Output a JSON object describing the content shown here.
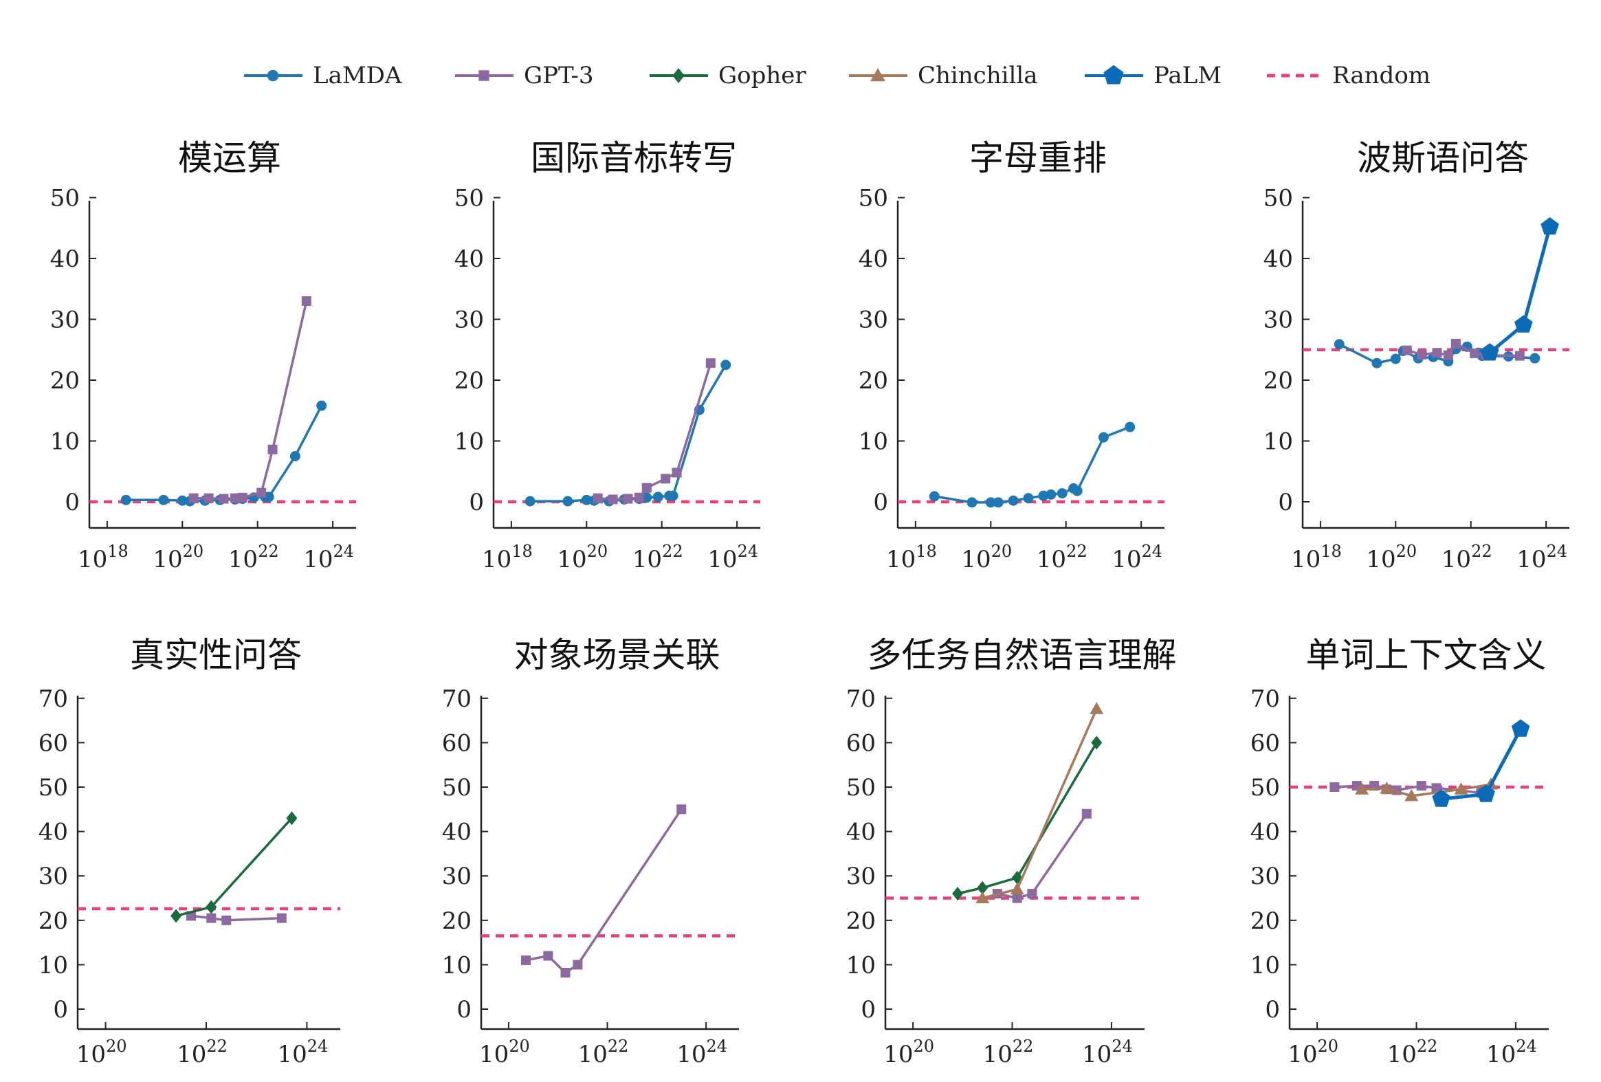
{
  "legend": {
    "items": [
      {
        "name": "LaMDA",
        "color": "#1f77b4",
        "marker": "circle",
        "dashed": false
      },
      {
        "name": "GPT-3",
        "color": "#8c6aa0",
        "marker": "square",
        "dashed": false
      },
      {
        "name": "Gopher",
        "color": "#1a6b3c",
        "marker": "diamond",
        "dashed": false
      },
      {
        "name": "Chinchilla",
        "color": "#a57a5a",
        "marker": "triangle",
        "dashed": false
      },
      {
        "name": "PaLM",
        "color": "#0a6cb8",
        "marker": "pentagon",
        "dashed": false
      },
      {
        "name": "Random",
        "color": "#e8417a",
        "marker": "none",
        "dashed": true
      }
    ]
  },
  "chart_data": [
    {
      "type": "line",
      "title": "模运算",
      "x_scale": "log",
      "xlim_exp": [
        17.6,
        24.4
      ],
      "ylim": [
        -4,
        50
      ],
      "xticks_exp": [
        18,
        20,
        22,
        24
      ],
      "yticks": [
        0,
        10,
        20,
        30,
        40,
        50
      ],
      "random": 0,
      "series": [
        {
          "name": "LaMDA",
          "exp": [
            18.5,
            19.5,
            20.0,
            20.2,
            20.6,
            21.0,
            21.4,
            21.6,
            21.9,
            22.2,
            22.3,
            23.0,
            23.7
          ],
          "values": [
            0.3,
            0.3,
            0.2,
            0.1,
            0.2,
            0.3,
            0.4,
            0.5,
            0.7,
            0.8,
            0.8,
            7.5,
            15.8
          ]
        },
        {
          "name": "GPT-3",
          "exp": [
            20.3,
            20.7,
            21.1,
            21.4,
            21.6,
            22.1,
            22.4,
            23.3
          ],
          "values": [
            0.6,
            0.6,
            0.5,
            0.6,
            0.7,
            1.5,
            8.6,
            33.0
          ]
        }
      ]
    },
    {
      "type": "line",
      "title": "国际音标转写",
      "x_scale": "log",
      "xlim_exp": [
        17.6,
        24.4
      ],
      "ylim": [
        -4,
        50
      ],
      "xticks_exp": [
        18,
        20,
        22,
        24
      ],
      "yticks": [
        0,
        10,
        20,
        30,
        40,
        50
      ],
      "random": 0,
      "series": [
        {
          "name": "LaMDA",
          "exp": [
            18.5,
            19.5,
            20.0,
            20.2,
            20.6,
            21.0,
            21.4,
            21.6,
            21.9,
            22.2,
            22.3,
            23.0,
            23.7
          ],
          "values": [
            0.1,
            0.1,
            0.3,
            0.2,
            0.1,
            0.4,
            0.5,
            0.7,
            0.8,
            1.0,
            1.0,
            15.1,
            22.5
          ]
        },
        {
          "name": "GPT-3",
          "exp": [
            20.3,
            20.7,
            21.1,
            21.4,
            21.6,
            22.1,
            22.4,
            23.3
          ],
          "values": [
            0.6,
            0.4,
            0.5,
            0.7,
            2.3,
            3.8,
            4.8,
            22.8
          ]
        }
      ]
    },
    {
      "type": "line",
      "title": "字母重排",
      "x_scale": "log",
      "xlim_exp": [
        17.6,
        24.4
      ],
      "ylim": [
        -4,
        50
      ],
      "xticks_exp": [
        18,
        20,
        22,
        24
      ],
      "yticks": [
        0,
        10,
        20,
        30,
        40,
        50
      ],
      "random": 0,
      "series": [
        {
          "name": "LaMDA",
          "exp": [
            18.5,
            19.5,
            20.0,
            20.2,
            20.6,
            21.0,
            21.4,
            21.6,
            21.9,
            22.2,
            22.3,
            23.0,
            23.7
          ],
          "values": [
            0.9,
            -0.1,
            -0.1,
            -0.1,
            0.2,
            0.6,
            1.0,
            1.2,
            1.4,
            2.2,
            1.8,
            10.6,
            12.3
          ]
        }
      ]
    },
    {
      "type": "line",
      "title": "波斯语问答",
      "x_scale": "log",
      "xlim_exp": [
        17.6,
        24.4
      ],
      "ylim": [
        -4,
        50
      ],
      "xticks_exp": [
        18,
        20,
        22,
        24
      ],
      "yticks": [
        0,
        10,
        20,
        30,
        40,
        50
      ],
      "random": 25,
      "series": [
        {
          "name": "LaMDA",
          "exp": [
            18.5,
            19.5,
            20.0,
            20.2,
            20.6,
            21.0,
            21.4,
            21.6,
            21.9,
            22.2,
            22.3,
            23.0,
            23.7
          ],
          "values": [
            25.9,
            22.8,
            23.5,
            24.8,
            23.6,
            23.8,
            23.1,
            25.1,
            25.5,
            24.5,
            24.0,
            23.9,
            23.6
          ]
        },
        {
          "name": "GPT-3",
          "exp": [
            20.3,
            20.7,
            21.1,
            21.4,
            21.6,
            22.1,
            22.4,
            23.3
          ],
          "values": [
            24.9,
            24.2,
            24.5,
            24.1,
            26.0,
            24.4,
            24.1,
            24.0
          ]
        },
        {
          "name": "PaLM",
          "exp": [
            22.5,
            23.4,
            24.1
          ],
          "values": [
            24.5,
            29.1,
            45.2
          ]
        }
      ]
    },
    {
      "type": "line",
      "title": "真实性问答",
      "x_scale": "log",
      "xlim_exp": [
        19.5,
        24.5
      ],
      "ylim": [
        -4,
        70
      ],
      "xticks_exp": [
        20,
        22,
        24
      ],
      "yticks": [
        0,
        10,
        20,
        30,
        40,
        50,
        60,
        70
      ],
      "random": 22.6,
      "series": [
        {
          "name": "GPT-3",
          "exp": [
            21.7,
            22.1,
            22.4,
            23.5
          ],
          "values": [
            21.0,
            20.5,
            20.0,
            20.5
          ]
        },
        {
          "name": "Gopher",
          "exp": [
            21.4,
            22.1,
            23.7
          ],
          "values": [
            21.0,
            23.0,
            43.0
          ]
        }
      ]
    },
    {
      "type": "line",
      "title": "对象场景关联",
      "x_scale": "log",
      "xlim_exp": [
        19.5,
        24.5
      ],
      "ylim": [
        -4,
        70
      ],
      "xticks_exp": [
        20,
        22,
        24
      ],
      "yticks": [
        0,
        10,
        20,
        30,
        40,
        50,
        60,
        70
      ],
      "random": 16.5,
      "series": [
        {
          "name": "GPT-3",
          "exp": [
            20.35,
            20.8,
            21.15,
            21.4,
            23.5
          ],
          "values": [
            11.0,
            12.0,
            8.2,
            10.0,
            45.0
          ]
        }
      ]
    },
    {
      "type": "line",
      "title": "多任务自然语言理解",
      "x_scale": "log",
      "xlim_exp": [
        19.5,
        24.5
      ],
      "ylim": [
        -4,
        70
      ],
      "xticks_exp": [
        20,
        22,
        24
      ],
      "yticks": [
        0,
        10,
        20,
        30,
        40,
        50,
        60,
        70
      ],
      "random": 25,
      "series": [
        {
          "name": "GPT-3",
          "exp": [
            21.7,
            22.1,
            22.4,
            23.5
          ],
          "values": [
            26.0,
            25.0,
            26.0,
            44.0
          ]
        },
        {
          "name": "Gopher",
          "exp": [
            20.9,
            21.4,
            22.1,
            23.7
          ],
          "values": [
            26.0,
            27.3,
            29.6,
            60.0
          ]
        },
        {
          "name": "Chinchilla",
          "exp": [
            21.4,
            22.1,
            23.7
          ],
          "values": [
            25.0,
            27.0,
            67.6
          ]
        }
      ]
    },
    {
      "type": "line",
      "title": "单词上下文含义",
      "x_scale": "log",
      "xlim_exp": [
        19.5,
        24.5
      ],
      "ylim": [
        -4,
        70
      ],
      "xticks_exp": [
        20,
        22,
        24
      ],
      "yticks": [
        0,
        10,
        20,
        30,
        40,
        50,
        60,
        70
      ],
      "random": 50,
      "series": [
        {
          "name": "GPT-3",
          "exp": [
            20.35,
            20.8,
            21.15,
            21.4,
            21.6,
            22.1,
            22.4,
            23.3
          ],
          "values": [
            50.0,
            50.3,
            50.3,
            49.5,
            49.3,
            50.3,
            49.8,
            48.7
          ]
        },
        {
          "name": "Chinchilla",
          "exp": [
            20.9,
            21.4,
            21.9,
            22.9,
            23.5
          ],
          "values": [
            49.5,
            49.7,
            48.0,
            49.5,
            50.6
          ]
        },
        {
          "name": "PaLM",
          "exp": [
            22.5,
            23.4,
            24.1
          ],
          "values": [
            47.3,
            48.4,
            63.1
          ]
        }
      ]
    }
  ]
}
